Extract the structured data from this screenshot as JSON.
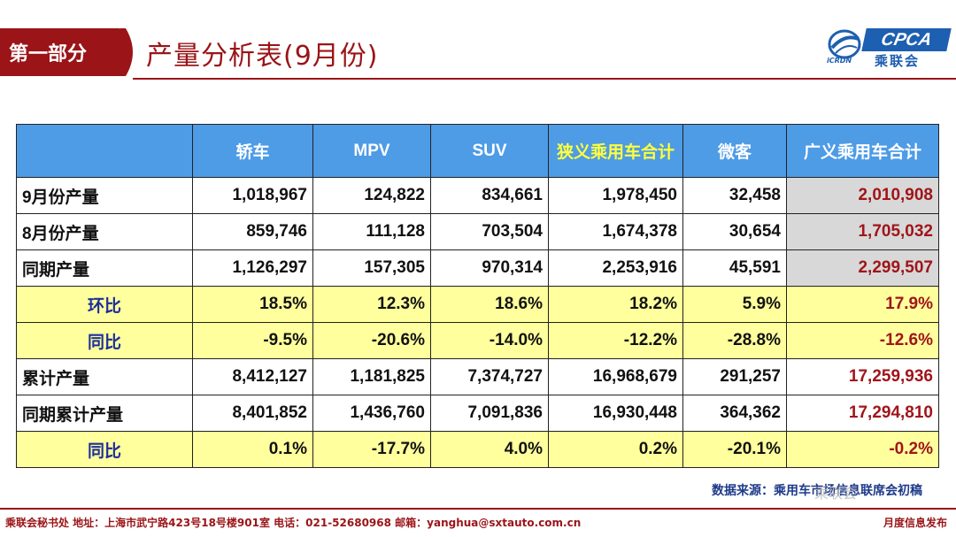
{
  "header": {
    "section": "第一部分",
    "title": "产量分析表(9月份)",
    "logo_text": "CPCA",
    "logo_cn": "乘联会",
    "logo_small": "iCRDN"
  },
  "table": {
    "corner": "",
    "columns": [
      "轿车",
      "MPV",
      "SUV",
      "狭义乘用车合计",
      "微客",
      "广义乘用车合计"
    ],
    "rows": [
      {
        "label": "9月份产量",
        "values": [
          "1,018,967",
          "124,822",
          "834,661",
          "1,978,450",
          "32,458",
          "2,010,908"
        ]
      },
      {
        "label": "8月份产量",
        "values": [
          "859,746",
          "111,128",
          "703,504",
          "1,674,378",
          "30,654",
          "1,705,032"
        ]
      },
      {
        "label": "同期产量",
        "values": [
          "1,126,297",
          "157,305",
          "970,314",
          "2,253,916",
          "45,591",
          "2,299,507"
        ]
      },
      {
        "label": "环比",
        "values": [
          "18.5%",
          "12.3%",
          "18.6%",
          "18.2%",
          "5.9%",
          "17.9%"
        ]
      },
      {
        "label": "同比",
        "values": [
          "-9.5%",
          "-20.6%",
          "-14.0%",
          "-12.2%",
          "-28.8%",
          "-12.6%"
        ]
      },
      {
        "label": "累计产量",
        "values": [
          "8,412,127",
          "1,181,825",
          "7,374,727",
          "16,968,679",
          "291,257",
          "17,259,936"
        ]
      },
      {
        "label": "同期累计产量",
        "values": [
          "8,401,852",
          "1,436,760",
          "7,091,836",
          "16,930,448",
          "364,362",
          "17,294,810"
        ]
      },
      {
        "label": "同比",
        "values": [
          "0.1%",
          "-17.7%",
          "4.0%",
          "0.2%",
          "-20.1%",
          "-0.2%"
        ]
      }
    ]
  },
  "source": "数据来源：乘用车市场信息联席会初稿",
  "watermark": "乘联会",
  "footer": {
    "left": "乘联会秘书处   地址：上海市武宁路423号18号楼901室  电话：021-52680968  邮箱：yanghua@sxtauto.com.cn",
    "right": "月度信息发布"
  },
  "colors": {
    "brand_red": "#9b1418",
    "header_blue": "#4e9be6",
    "highlight_yellow": "#ffff9d",
    "highlight_text": "#ffff3c"
  }
}
